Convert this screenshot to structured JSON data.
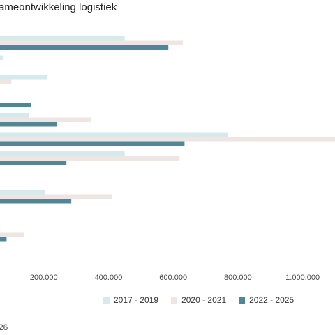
{
  "title": "ameontwikkeling logistiek",
  "source": "26",
  "chart_data": {
    "type": "bar",
    "orientation": "horizontal",
    "title": "ameontwikkeling logistiek",
    "xlim": [
      0,
      1100000
    ],
    "x_ticks": [
      200000,
      400000,
      600000,
      800000,
      1000000
    ],
    "x_tick_labels": [
      "200.000",
      "400.000",
      "600.000",
      "800.000",
      "1.000.000"
    ],
    "categories": [
      "",
      "",
      "",
      "",
      "",
      "",
      "",
      "",
      "",
      "",
      "",
      "",
      ""
    ],
    "series": [
      {
        "name": "2017 - 2019",
        "color": "#d6e9ec",
        "values": [
          450000,
          75000,
          210000,
          60000,
          155000,
          770000,
          450000,
          0,
          205000,
          0,
          65000,
          0,
          0
        ]
      },
      {
        "name": "2020 - 2021",
        "color": "#efe6e4",
        "values": [
          630000,
          0,
          100000,
          45000,
          345000,
          1100000,
          620000,
          0,
          410000,
          0,
          140000,
          0,
          0
        ]
      },
      {
        "name": "2022 - 2025",
        "color": "#4f8799",
        "values": [
          585000,
          5000,
          55000,
          160000,
          240000,
          635000,
          270000,
          0,
          285000,
          0,
          85000,
          0,
          0
        ]
      }
    ],
    "legend_position": "bottom",
    "grid": false
  }
}
